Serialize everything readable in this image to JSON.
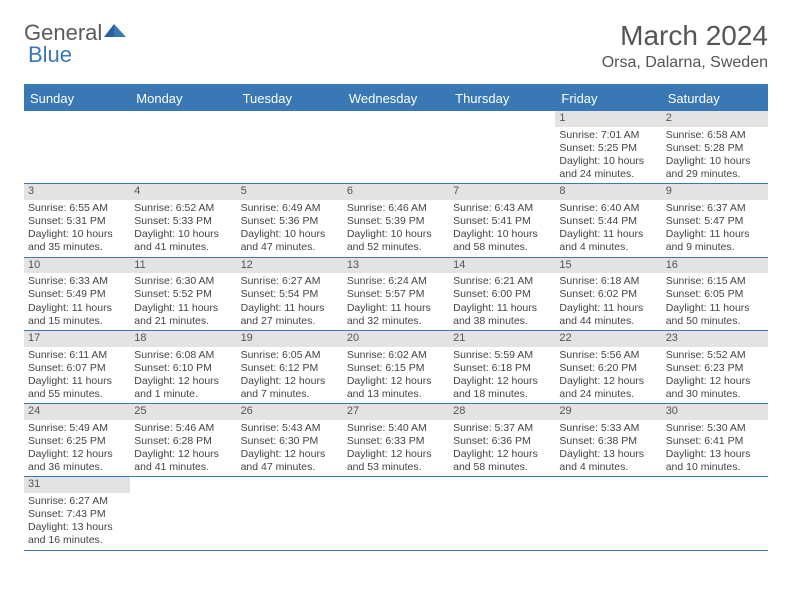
{
  "logo": {
    "part1": "General",
    "part2": "Blue"
  },
  "title": "March 2024",
  "location": "Orsa, Dalarna, Sweden",
  "colors": {
    "brand": "#3a78b5",
    "header_text": "#555555",
    "body_text": "#444444",
    "daynum_bg": "#e3e3e3",
    "background": "#ffffff"
  },
  "day_names": [
    "Sunday",
    "Monday",
    "Tuesday",
    "Wednesday",
    "Thursday",
    "Friday",
    "Saturday"
  ],
  "weeks": [
    [
      null,
      null,
      null,
      null,
      null,
      {
        "d": "1",
        "sr": "Sunrise: 7:01 AM",
        "ss": "Sunset: 5:25 PM",
        "dl1": "Daylight: 10 hours",
        "dl2": "and 24 minutes."
      },
      {
        "d": "2",
        "sr": "Sunrise: 6:58 AM",
        "ss": "Sunset: 5:28 PM",
        "dl1": "Daylight: 10 hours",
        "dl2": "and 29 minutes."
      }
    ],
    [
      {
        "d": "3",
        "sr": "Sunrise: 6:55 AM",
        "ss": "Sunset: 5:31 PM",
        "dl1": "Daylight: 10 hours",
        "dl2": "and 35 minutes."
      },
      {
        "d": "4",
        "sr": "Sunrise: 6:52 AM",
        "ss": "Sunset: 5:33 PM",
        "dl1": "Daylight: 10 hours",
        "dl2": "and 41 minutes."
      },
      {
        "d": "5",
        "sr": "Sunrise: 6:49 AM",
        "ss": "Sunset: 5:36 PM",
        "dl1": "Daylight: 10 hours",
        "dl2": "and 47 minutes."
      },
      {
        "d": "6",
        "sr": "Sunrise: 6:46 AM",
        "ss": "Sunset: 5:39 PM",
        "dl1": "Daylight: 10 hours",
        "dl2": "and 52 minutes."
      },
      {
        "d": "7",
        "sr": "Sunrise: 6:43 AM",
        "ss": "Sunset: 5:41 PM",
        "dl1": "Daylight: 10 hours",
        "dl2": "and 58 minutes."
      },
      {
        "d": "8",
        "sr": "Sunrise: 6:40 AM",
        "ss": "Sunset: 5:44 PM",
        "dl1": "Daylight: 11 hours",
        "dl2": "and 4 minutes."
      },
      {
        "d": "9",
        "sr": "Sunrise: 6:37 AM",
        "ss": "Sunset: 5:47 PM",
        "dl1": "Daylight: 11 hours",
        "dl2": "and 9 minutes."
      }
    ],
    [
      {
        "d": "10",
        "sr": "Sunrise: 6:33 AM",
        "ss": "Sunset: 5:49 PM",
        "dl1": "Daylight: 11 hours",
        "dl2": "and 15 minutes."
      },
      {
        "d": "11",
        "sr": "Sunrise: 6:30 AM",
        "ss": "Sunset: 5:52 PM",
        "dl1": "Daylight: 11 hours",
        "dl2": "and 21 minutes."
      },
      {
        "d": "12",
        "sr": "Sunrise: 6:27 AM",
        "ss": "Sunset: 5:54 PM",
        "dl1": "Daylight: 11 hours",
        "dl2": "and 27 minutes."
      },
      {
        "d": "13",
        "sr": "Sunrise: 6:24 AM",
        "ss": "Sunset: 5:57 PM",
        "dl1": "Daylight: 11 hours",
        "dl2": "and 32 minutes."
      },
      {
        "d": "14",
        "sr": "Sunrise: 6:21 AM",
        "ss": "Sunset: 6:00 PM",
        "dl1": "Daylight: 11 hours",
        "dl2": "and 38 minutes."
      },
      {
        "d": "15",
        "sr": "Sunrise: 6:18 AM",
        "ss": "Sunset: 6:02 PM",
        "dl1": "Daylight: 11 hours",
        "dl2": "and 44 minutes."
      },
      {
        "d": "16",
        "sr": "Sunrise: 6:15 AM",
        "ss": "Sunset: 6:05 PM",
        "dl1": "Daylight: 11 hours",
        "dl2": "and 50 minutes."
      }
    ],
    [
      {
        "d": "17",
        "sr": "Sunrise: 6:11 AM",
        "ss": "Sunset: 6:07 PM",
        "dl1": "Daylight: 11 hours",
        "dl2": "and 55 minutes."
      },
      {
        "d": "18",
        "sr": "Sunrise: 6:08 AM",
        "ss": "Sunset: 6:10 PM",
        "dl1": "Daylight: 12 hours",
        "dl2": "and 1 minute."
      },
      {
        "d": "19",
        "sr": "Sunrise: 6:05 AM",
        "ss": "Sunset: 6:12 PM",
        "dl1": "Daylight: 12 hours",
        "dl2": "and 7 minutes."
      },
      {
        "d": "20",
        "sr": "Sunrise: 6:02 AM",
        "ss": "Sunset: 6:15 PM",
        "dl1": "Daylight: 12 hours",
        "dl2": "and 13 minutes."
      },
      {
        "d": "21",
        "sr": "Sunrise: 5:59 AM",
        "ss": "Sunset: 6:18 PM",
        "dl1": "Daylight: 12 hours",
        "dl2": "and 18 minutes."
      },
      {
        "d": "22",
        "sr": "Sunrise: 5:56 AM",
        "ss": "Sunset: 6:20 PM",
        "dl1": "Daylight: 12 hours",
        "dl2": "and 24 minutes."
      },
      {
        "d": "23",
        "sr": "Sunrise: 5:52 AM",
        "ss": "Sunset: 6:23 PM",
        "dl1": "Daylight: 12 hours",
        "dl2": "and 30 minutes."
      }
    ],
    [
      {
        "d": "24",
        "sr": "Sunrise: 5:49 AM",
        "ss": "Sunset: 6:25 PM",
        "dl1": "Daylight: 12 hours",
        "dl2": "and 36 minutes."
      },
      {
        "d": "25",
        "sr": "Sunrise: 5:46 AM",
        "ss": "Sunset: 6:28 PM",
        "dl1": "Daylight: 12 hours",
        "dl2": "and 41 minutes."
      },
      {
        "d": "26",
        "sr": "Sunrise: 5:43 AM",
        "ss": "Sunset: 6:30 PM",
        "dl1": "Daylight: 12 hours",
        "dl2": "and 47 minutes."
      },
      {
        "d": "27",
        "sr": "Sunrise: 5:40 AM",
        "ss": "Sunset: 6:33 PM",
        "dl1": "Daylight: 12 hours",
        "dl2": "and 53 minutes."
      },
      {
        "d": "28",
        "sr": "Sunrise: 5:37 AM",
        "ss": "Sunset: 6:36 PM",
        "dl1": "Daylight: 12 hours",
        "dl2": "and 58 minutes."
      },
      {
        "d": "29",
        "sr": "Sunrise: 5:33 AM",
        "ss": "Sunset: 6:38 PM",
        "dl1": "Daylight: 13 hours",
        "dl2": "and 4 minutes."
      },
      {
        "d": "30",
        "sr": "Sunrise: 5:30 AM",
        "ss": "Sunset: 6:41 PM",
        "dl1": "Daylight: 13 hours",
        "dl2": "and 10 minutes."
      }
    ],
    [
      {
        "d": "31",
        "sr": "Sunrise: 6:27 AM",
        "ss": "Sunset: 7:43 PM",
        "dl1": "Daylight: 13 hours",
        "dl2": "and 16 minutes."
      },
      null,
      null,
      null,
      null,
      null,
      null
    ]
  ]
}
